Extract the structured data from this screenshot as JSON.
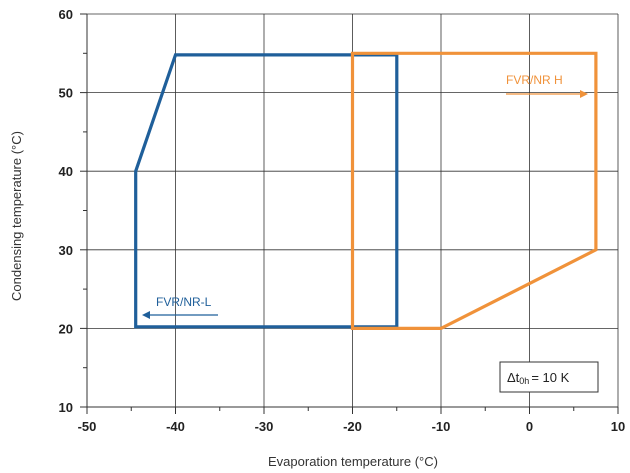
{
  "chart_data": {
    "type": "line",
    "xlabel": "Evaporation temperature (°C)",
    "ylabel": "Condensing temperature (°C)",
    "xlim": [
      -50,
      10
    ],
    "ylim": [
      10,
      60
    ],
    "x_ticks": [
      -50,
      -40,
      -30,
      -20,
      -10,
      0,
      10
    ],
    "y_ticks": [
      10,
      20,
      30,
      40,
      50,
      60
    ],
    "grid": true,
    "series": [
      {
        "name": "FVR/NR-L",
        "color": "#1f5f9a",
        "closed": true,
        "points": [
          [
            -40,
            54.8
          ],
          [
            -15,
            54.8
          ],
          [
            -15,
            20.2
          ],
          [
            -44.5,
            20.2
          ],
          [
            -44.5,
            40
          ]
        ],
        "label_arrow_direction": "left"
      },
      {
        "name": "FVR/NR H",
        "color": "#f0923a",
        "closed": true,
        "points": [
          [
            -20,
            55
          ],
          [
            7.5,
            55
          ],
          [
            7.5,
            30
          ],
          [
            -10,
            20
          ],
          [
            -20,
            20
          ]
        ],
        "label_arrow_direction": "right"
      }
    ],
    "annotation": {
      "prefix": "Δt",
      "subscript": "0h",
      "suffix": "= 10 K"
    }
  }
}
